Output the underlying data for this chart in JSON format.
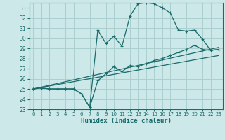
{
  "xlabel": "Humidex (Indice chaleur)",
  "bg_color": "#cce8e8",
  "grid_color": "#aacfcf",
  "line_color": "#1a6b6b",
  "xlim": [
    -0.5,
    23.5
  ],
  "ylim": [
    23,
    33.5
  ],
  "xticks": [
    0,
    1,
    2,
    3,
    4,
    5,
    6,
    7,
    8,
    9,
    10,
    11,
    12,
    13,
    14,
    15,
    16,
    17,
    18,
    19,
    20,
    21,
    22,
    23
  ],
  "yticks": [
    23,
    24,
    25,
    26,
    27,
    28,
    29,
    30,
    31,
    32,
    33
  ],
  "line1_x": [
    0,
    1,
    2,
    3,
    4,
    5,
    6,
    7,
    8,
    9,
    10,
    11,
    12,
    13,
    14,
    15,
    16,
    17,
    18,
    19,
    20,
    21,
    22,
    23
  ],
  "line1_y": [
    25.0,
    25.1,
    25.0,
    25.0,
    25.0,
    25.0,
    24.5,
    23.2,
    30.8,
    29.5,
    30.2,
    29.2,
    32.2,
    33.4,
    33.5,
    33.4,
    33.0,
    32.5,
    30.8,
    30.7,
    30.8,
    29.9,
    28.8,
    28.9
  ],
  "line2_x": [
    0,
    1,
    2,
    3,
    4,
    5,
    6,
    7,
    8,
    9,
    10,
    11,
    12,
    13,
    14,
    15,
    16,
    17,
    18,
    19,
    20,
    21,
    22,
    23
  ],
  "line2_y": [
    25.0,
    25.1,
    25.0,
    25.0,
    25.0,
    25.0,
    24.5,
    23.2,
    25.8,
    26.5,
    27.2,
    26.7,
    27.3,
    27.2,
    27.5,
    27.8,
    28.0,
    28.3,
    28.6,
    28.9,
    29.3,
    28.9,
    28.8,
    28.9
  ],
  "line3_x": [
    0,
    23
  ],
  "line3_y": [
    25.0,
    29.1
  ],
  "line4_x": [
    0,
    23
  ],
  "line4_y": [
    25.0,
    28.3
  ]
}
